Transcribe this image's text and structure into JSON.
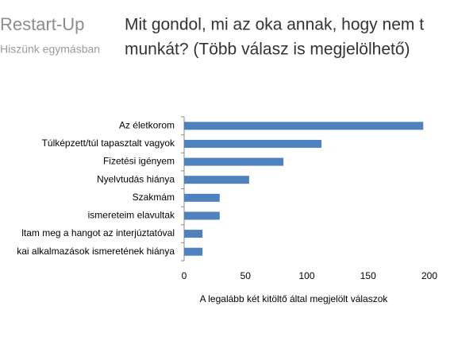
{
  "header": {
    "logo": "Restart-Up",
    "tagline": "Hiszünk egymásban"
  },
  "chart_data": {
    "type": "bar",
    "orientation": "horizontal",
    "title": [
      "Mit gondol, mi az oka annak, hogy nem t",
      "munkát? (Több válasz is megjelölhető)"
    ],
    "xlabel": "A legalább két kitöltő által megjelölt válaszok",
    "categories": [
      "Az életkorom",
      "Túlképzett/túl tapasztalt vagyok",
      "Fizetési igényem",
      "Nyelvtudás hiánya",
      "Szakmám",
      "ismereteim elavultak",
      "ltam meg a hangot az interjúztatóval",
      "kai alkalmazások ismeretének hiánya"
    ],
    "values": [
      195,
      112,
      81,
      53,
      29,
      29,
      15,
      15
    ],
    "color": "#4f81bd",
    "xlim": [
      0,
      200
    ],
    "xticks": [
      0,
      50,
      100,
      150,
      200
    ],
    "grid": false
  }
}
